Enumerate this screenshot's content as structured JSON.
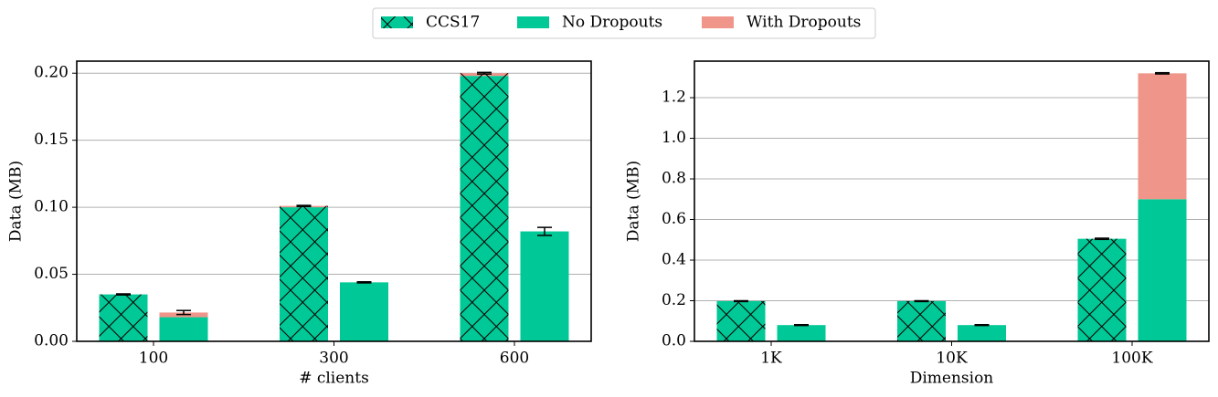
{
  "legend": [
    {
      "label": "CCS17",
      "color": "#00c896",
      "hatch": true
    },
    {
      "label": "No Dropouts",
      "color": "#00c896",
      "hatch": false
    },
    {
      "label": "With Dropouts",
      "color": "#f0958a",
      "hatch": false
    }
  ],
  "chart_data": [
    {
      "type": "bar",
      "x_label": "# clients",
      "y_label": "Data (MB)",
      "grid": true,
      "categories": [
        "100",
        "300",
        "600"
      ],
      "ylim": [
        0,
        0.209
      ],
      "yticks": [
        {
          "value": 0,
          "label": "0.00"
        },
        {
          "value": 0.05,
          "label": "0.05"
        },
        {
          "value": 0.1,
          "label": "0.10"
        },
        {
          "value": 0.15,
          "label": "0.15"
        },
        {
          "value": 0.2,
          "label": "0.20"
        }
      ],
      "series": [
        {
          "hatch": true,
          "color": "#00c896",
          "dropout_color": "#f0958a",
          "values": [
            0.035,
            0.1,
            0.198
          ],
          "dropout_values": [
            0,
            0.001,
            0.002
          ],
          "errors": [
            0.0004,
            0.0004,
            0.0006
          ]
        },
        {
          "hatch": false,
          "color": "#00c896",
          "dropout_color": "#f0958a",
          "values": [
            0.018,
            0.044,
            0.082
          ],
          "dropout_values": [
            0.0035,
            0,
            0
          ],
          "errors": [
            0.0015,
            0.0004,
            0.003
          ]
        }
      ]
    },
    {
      "type": "bar",
      "x_label": "Dimension",
      "y_label": "Data (MB)",
      "grid": true,
      "categories": [
        "1K",
        "10K",
        "100K"
      ],
      "ylim": [
        0,
        1.38
      ],
      "yticks": [
        {
          "value": 0,
          "label": "0.0"
        },
        {
          "value": 0.2,
          "label": "0.2"
        },
        {
          "value": 0.4,
          "label": "0.4"
        },
        {
          "value": 0.6,
          "label": "0.6"
        },
        {
          "value": 0.8,
          "label": "0.8"
        },
        {
          "value": 1.0,
          "label": "1.0"
        },
        {
          "value": 1.2,
          "label": "1.2"
        }
      ],
      "series": [
        {
          "hatch": true,
          "color": "#00c896",
          "dropout_color": "#f0958a",
          "values": [
            0.198,
            0.198,
            0.505
          ],
          "dropout_values": [
            0,
            0,
            0
          ],
          "errors": [
            0.002,
            0.002,
            0.003
          ]
        },
        {
          "hatch": false,
          "color": "#00c896",
          "dropout_color": "#f0958a",
          "values": [
            0.08,
            0.08,
            0.7
          ],
          "dropout_values": [
            0,
            0,
            0.62
          ],
          "errors": [
            0.002,
            0.002,
            0.003
          ]
        }
      ]
    }
  ]
}
